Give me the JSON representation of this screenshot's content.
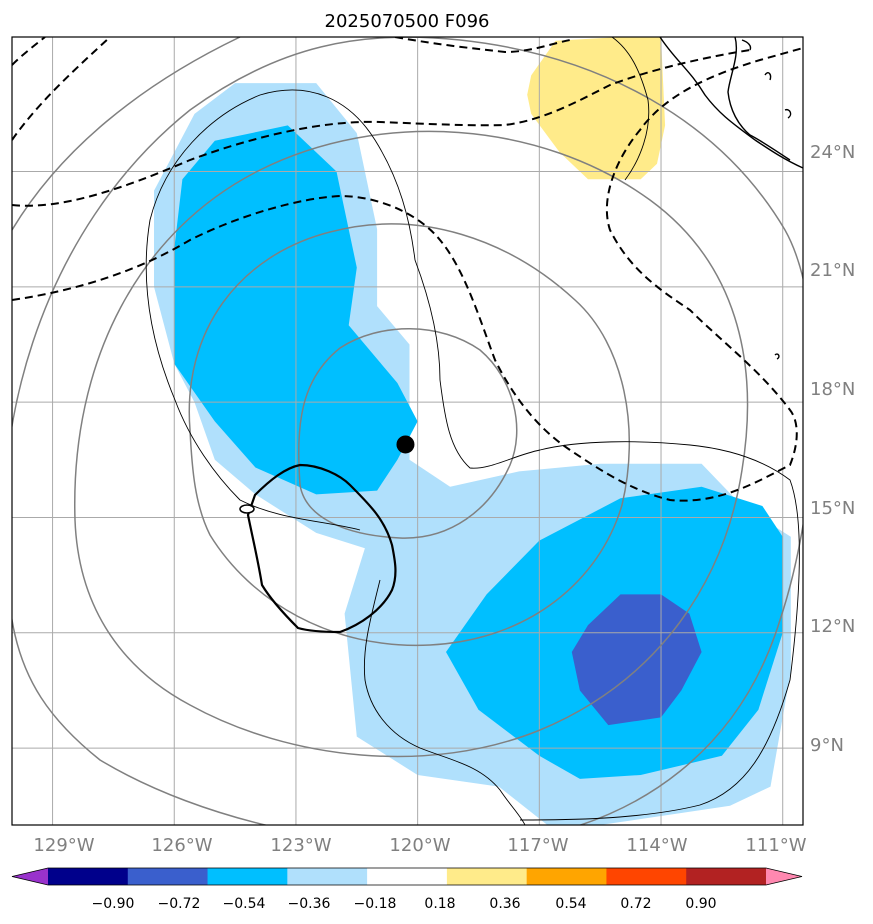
{
  "title": "2025070500 F096",
  "map": {
    "lon_range": [
      -130,
      -110.5
    ],
    "lat_range": [
      7,
      27.5
    ],
    "lon_ticks": [
      "129°W",
      "126°W",
      "123°W",
      "120°W",
      "117°W",
      "114°W",
      "111°W"
    ],
    "lat_ticks": [
      "24°N",
      "21°N",
      "18°N",
      "15°N",
      "12°N",
      "9°N"
    ],
    "gridlines": true,
    "coastline_color": "#000000",
    "grid_color": "#aaaaaa"
  },
  "chart_data": {
    "type": "heatmap",
    "title": "2025070500 F096",
    "xlabel": "",
    "ylabel": "",
    "xlim": [
      -130,
      -110.5
    ],
    "ylim": [
      7,
      27.5
    ],
    "storm_center": {
      "lon": -120.3,
      "lat": 16.9
    },
    "filled_regions": [
      {
        "level": "-0.36 to -0.18",
        "color": "#b0e0fc",
        "polygon": [
          [
            -125.5,
            25.5
          ],
          [
            -124.5,
            26.3
          ],
          [
            -122.5,
            26.3
          ],
          [
            -121.5,
            25
          ],
          [
            -121,
            22.5
          ],
          [
            -121,
            20.5
          ],
          [
            -120.2,
            19.5
          ],
          [
            -120.2,
            16.5
          ],
          [
            -119.2,
            15.8
          ],
          [
            -117.5,
            16.2
          ],
          [
            -115.5,
            16.4
          ],
          [
            -113,
            16.4
          ],
          [
            -112,
            15.3
          ],
          [
            -110.8,
            14.5
          ],
          [
            -110.8,
            11
          ],
          [
            -111.3,
            8
          ],
          [
            -112.3,
            7.5
          ],
          [
            -115.5,
            7
          ],
          [
            -116.8,
            7
          ],
          [
            -118,
            8
          ],
          [
            -120,
            8.3
          ],
          [
            -121.5,
            9.3
          ],
          [
            -121.8,
            12.5
          ],
          [
            -121.3,
            14.2
          ],
          [
            -122.5,
            14.6
          ],
          [
            -124,
            15.6
          ],
          [
            -125,
            16.5
          ],
          [
            -125.5,
            18
          ],
          [
            -126,
            19
          ],
          [
            -126.5,
            21
          ],
          [
            -126.5,
            23.5
          ]
        ]
      },
      {
        "level": "-0.54 to -0.36",
        "color": "#00bfff",
        "polygon": [
          [
            -125.8,
            23.8
          ],
          [
            -125,
            24.8
          ],
          [
            -123.2,
            25.2
          ],
          [
            -122,
            24
          ],
          [
            -121.5,
            21.5
          ],
          [
            -121.7,
            20
          ],
          [
            -120.5,
            18.5
          ],
          [
            -120,
            17.5
          ],
          [
            -120.5,
            16.5
          ],
          [
            -121,
            15.7
          ],
          [
            -122.5,
            15.6
          ],
          [
            -124,
            16.3
          ],
          [
            -125,
            17.5
          ],
          [
            -126,
            19
          ],
          [
            -126,
            22
          ]
        ]
      },
      {
        "level": "-0.54 to -0.36",
        "color": "#00bfff",
        "polygon": [
          [
            -119.3,
            11.5
          ],
          [
            -118.3,
            13
          ],
          [
            -117,
            14.4
          ],
          [
            -115,
            15.5
          ],
          [
            -113,
            15.8
          ],
          [
            -111.5,
            15.3
          ],
          [
            -111,
            14.5
          ],
          [
            -111,
            12
          ],
          [
            -111.6,
            10
          ],
          [
            -112.5,
            8.8
          ],
          [
            -114.5,
            8.3
          ],
          [
            -116,
            8.2
          ],
          [
            -117,
            8.8
          ],
          [
            -118.5,
            10
          ]
        ]
      },
      {
        "level": "-0.72 to -0.54",
        "color": "#3a5fcd",
        "polygon": [
          [
            -115.8,
            12.2
          ],
          [
            -115,
            13
          ],
          [
            -114,
            13
          ],
          [
            -113.3,
            12.5
          ],
          [
            -113,
            11.5
          ],
          [
            -113.5,
            10.5
          ],
          [
            -114,
            9.8
          ],
          [
            -115.3,
            9.6
          ],
          [
            -116,
            10.5
          ],
          [
            -116.2,
            11.5
          ]
        ]
      },
      {
        "level": "0.18 to 0.36",
        "color": "#ffeb8a",
        "polygon": [
          [
            -117.2,
            26.5
          ],
          [
            -116.6,
            27.4
          ],
          [
            -115,
            27.5
          ],
          [
            -114,
            27.5
          ],
          [
            -113.9,
            25.2
          ],
          [
            -114.1,
            24.2
          ],
          [
            -114.5,
            23.8
          ],
          [
            -115.8,
            23.8
          ],
          [
            -116.5,
            24.5
          ],
          [
            -117.2,
            25.5
          ],
          [
            -117.3,
            26
          ]
        ]
      }
    ],
    "colorbar": {
      "levels": [
        "−0.90",
        "−0.72",
        "−0.54",
        "−0.36",
        "−0.18",
        "0.18",
        "0.36",
        "0.54",
        "0.72",
        "0.90"
      ],
      "colors": [
        "#9932cc",
        "#00008b",
        "#3a5fcd",
        "#00bfff",
        "#b0e0fc",
        "#ffffff",
        "#ffeb8a",
        "#ffa500",
        "#ff4500",
        "#b22222",
        "#ff88b0"
      ],
      "extend": "both"
    }
  }
}
